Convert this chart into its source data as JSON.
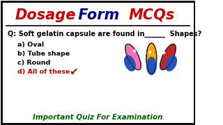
{
  "title_part1": "Dosage",
  "title_part2": " Form ",
  "title_part3": "MCQs",
  "title_color1": "#cc0000",
  "title_color2": "#00008B",
  "title_color3": "#cc0000",
  "question": "Q: Soft gelatin capsule are found in______  Shapes?",
  "question_color": "#000000",
  "options": [
    "a) Oval",
    "b) Tube shape",
    "c) Round",
    "d) All of these"
  ],
  "option_colors": [
    "#000000",
    "#000000",
    "#000000",
    "#cc0000"
  ],
  "checkmark_color": "#cc0000",
  "footer": "Important Quiz For Examination",
  "footer_color": "#006400",
  "bg_color": "#ffffff",
  "border_color": "#000000",
  "line_color": "#000000",
  "capsule_pink": "#ff6eb4",
  "capsule_orange": "#ffa500",
  "capsule_red": "#cc2222",
  "capsule_blue": "#2255bb"
}
